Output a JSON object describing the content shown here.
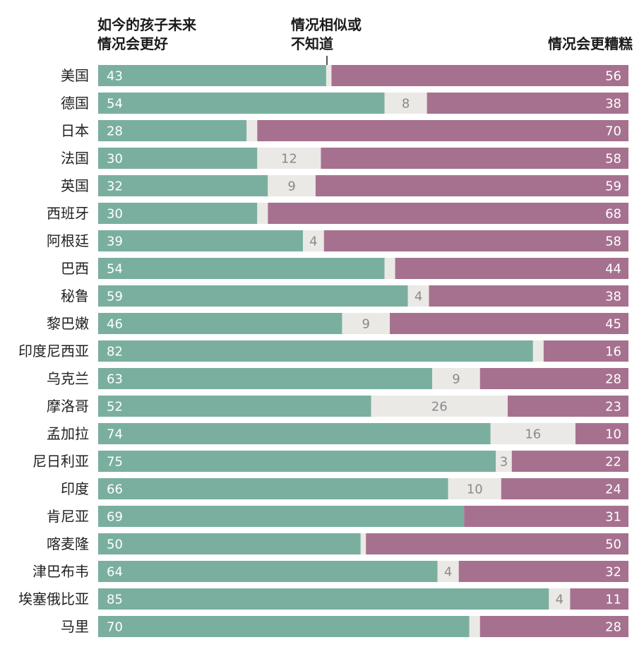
{
  "headers": {
    "better": [
      "如今的孩子未来",
      "情况会更好"
    ],
    "similar": [
      "情况相似或",
      "不知道"
    ],
    "worse": "情况会更糟糕"
  },
  "colors": {
    "better": "#7aaf9f",
    "similar": "#ebe9e6",
    "worse": "#a6718f"
  },
  "chart_data": {
    "type": "bar",
    "stacked": true,
    "orientation": "horizontal",
    "categories": [
      "美国",
      "德国",
      "日本",
      "法国",
      "英国",
      "西班牙",
      "阿根廷",
      "巴西",
      "秘鲁",
      "黎巴嫩",
      "印度尼西亚",
      "乌克兰",
      "摩洛哥",
      "孟加拉",
      "尼日利亚",
      "印度",
      "肯尼亚",
      "喀麦隆",
      "津巴布韦",
      "埃塞俄比亚",
      "马里"
    ],
    "series": [
      {
        "name": "如今的孩子未来情况会更好",
        "values": [
          43,
          54,
          28,
          30,
          32,
          30,
          39,
          54,
          59,
          46,
          82,
          63,
          52,
          74,
          75,
          66,
          69,
          50,
          64,
          85,
          70
        ]
      },
      {
        "name": "情况相似或不知道",
        "values": [
          1,
          8,
          2,
          12,
          9,
          2,
          4,
          2,
          4,
          9,
          2,
          9,
          26,
          16,
          3,
          10,
          0,
          1,
          4,
          4,
          2
        ]
      },
      {
        "name": "情况会更糟糕",
        "values": [
          56,
          38,
          70,
          58,
          59,
          68,
          58,
          44,
          38,
          45,
          16,
          28,
          23,
          10,
          22,
          24,
          31,
          50,
          32,
          11,
          28
        ]
      }
    ],
    "similar_labels_shown": [
      null,
      "8",
      null,
      "12",
      "9",
      null,
      "4",
      null,
      "4",
      "9",
      null,
      "9",
      "26",
      "16",
      "3",
      "10",
      null,
      null,
      "4",
      "4",
      null
    ]
  }
}
